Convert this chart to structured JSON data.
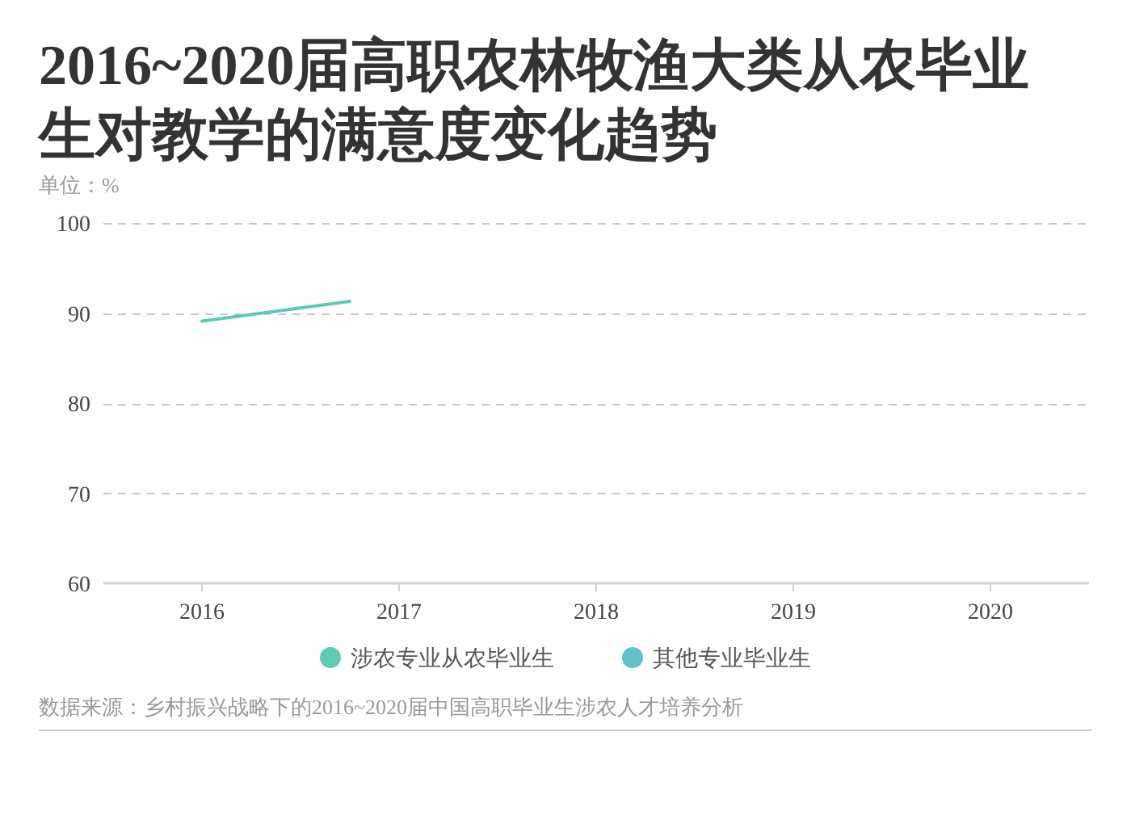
{
  "chart_data": {
    "type": "line",
    "title": "2016~2020届高职农林牧渔大类从农毕业生对教学的满意度变化趋势",
    "ylabel": "单位：%",
    "series": [
      {
        "name": "涉农专业从农毕业生",
        "color": "#5dcab6",
        "x": [
          2016,
          2016.75
        ],
        "values": [
          89.1,
          91.3
        ]
      },
      {
        "name": "其他专业毕业生",
        "color": "#5ec2c8"
      }
    ],
    "xlim": [
      2015.5,
      2020.5
    ],
    "xticks": [
      2016,
      2017,
      2018,
      2019,
      2020
    ],
    "ylim": [
      60,
      100
    ],
    "yticks": [
      60,
      70,
      80,
      90,
      100
    ],
    "grid": "y",
    "legend": "bottom",
    "annotations": [
      "数据来源：乡村振兴战略下的2016~2020届中国高职毕业生涉农人才培养分析"
    ]
  }
}
